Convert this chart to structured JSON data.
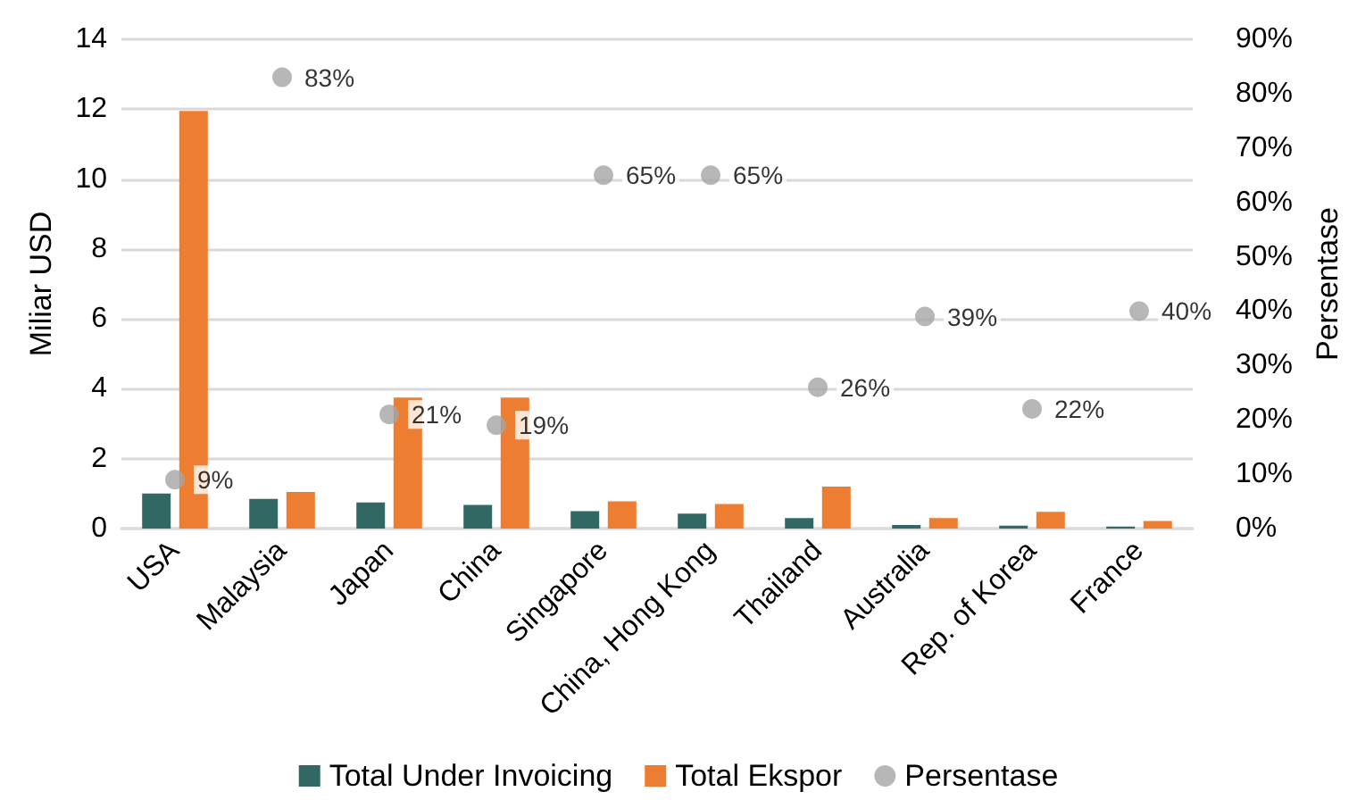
{
  "chart_data": {
    "type": "bar",
    "ylabel": "Miliar USD",
    "y2label": "Persentase",
    "categories": [
      "USA",
      "Malaysia",
      "Japan",
      "China",
      "Singapore",
      "China, Hong Kong",
      "Thailand",
      "Australia",
      "Rep. of Korea",
      "France"
    ],
    "series": [
      {
        "name": "Total Under Invoicing",
        "color": "#326864",
        "values": [
          1.0,
          0.85,
          0.75,
          0.68,
          0.5,
          0.43,
          0.3,
          0.1,
          0.08,
          0.06
        ]
      },
      {
        "name": "Total Ekspor",
        "color": "#ed7d31",
        "values": [
          11.95,
          1.05,
          3.75,
          3.75,
          0.78,
          0.7,
          1.2,
          0.3,
          0.48,
          0.22
        ]
      },
      {
        "name": "Persentase",
        "type": "scatter",
        "axis": "y2",
        "color": "#a5a5a5",
        "values": [
          9,
          83,
          21,
          19,
          65,
          65,
          26,
          39,
          22,
          40
        ],
        "value_labels": [
          "9%",
          "83%",
          "21%",
          "19%",
          "65%",
          "65%",
          "26%",
          "39%",
          "22%",
          "40%"
        ]
      }
    ],
    "ylim": [
      0,
      14
    ],
    "yticks": [
      0,
      2,
      4,
      6,
      8,
      10,
      12,
      14
    ],
    "y2lim": [
      0,
      90
    ],
    "y2ticks": [
      {
        "value": 0,
        "label": "0%"
      },
      {
        "value": 10,
        "label": "10%"
      },
      {
        "value": 20,
        "label": "20%"
      },
      {
        "value": 30,
        "label": "30%"
      },
      {
        "value": 40,
        "label": "40%"
      },
      {
        "value": 50,
        "label": "50%"
      },
      {
        "value": 60,
        "label": "60%"
      },
      {
        "value": 70,
        "label": "70%"
      },
      {
        "value": 80,
        "label": "80%"
      },
      {
        "value": 90,
        "label": "90%"
      }
    ],
    "grid": "y",
    "legend": "bottom",
    "marker": "circle"
  }
}
